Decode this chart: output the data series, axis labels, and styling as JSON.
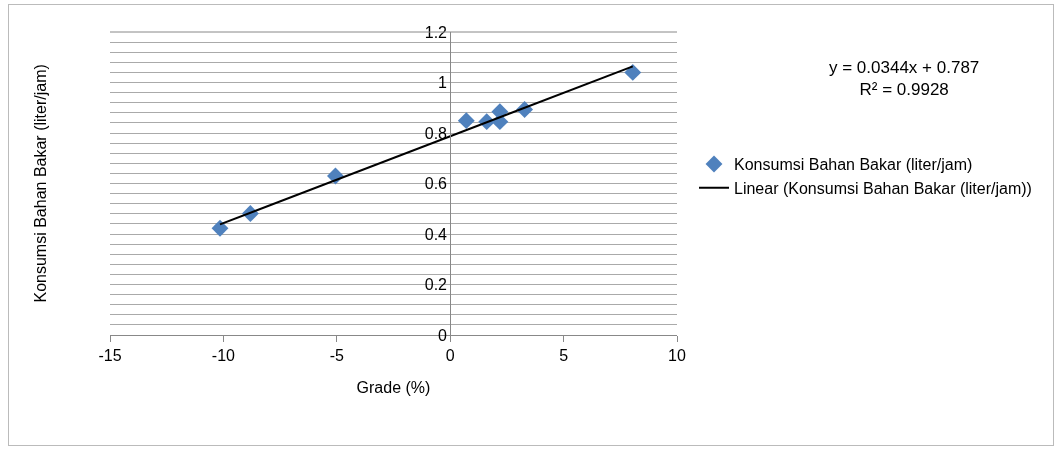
{
  "chart_data": {
    "type": "scatter",
    "xlabel": "Grade (%)",
    "ylabel": "Konsumsi Bahan Bakar (liter/jam)",
    "x": [
      -10.15,
      -8.81,
      -5.06,
      0.71,
      1.61,
      2.19,
      2.19,
      3.28,
      8.05
    ],
    "series": [
      {
        "name": "Konsumsi Bahan Bakar (liter/jam)",
        "color": "#4f81bd",
        "marker": "diamond",
        "values": [
          0.423,
          0.481,
          0.63,
          0.849,
          0.845,
          0.884,
          0.845,
          0.893,
          1.04
        ]
      },
      {
        "name": "Linear (Konsumsi Bahan Bakar (liter/jam))",
        "type": "line",
        "color": "#000000",
        "marker": "none",
        "line_style": "solid",
        "x": [
          -10.15,
          8.05
        ],
        "values": [
          0.438,
          1.064
        ]
      }
    ],
    "annotations": [
      "y = 0.0344x + 0.787\nR² = 0.9928"
    ],
    "xlim": [
      -15,
      10
    ],
    "xticks": [
      -15,
      -10,
      -5,
      0,
      5,
      10
    ],
    "ylim": [
      0,
      1.2
    ],
    "yticks": [
      0,
      {
        "value": 0.04,
        "label": null
      },
      {
        "value": 0.08,
        "label": null
      },
      {
        "value": 0.12,
        "label": null
      },
      {
        "value": 0.16,
        "label": null
      },
      0.2,
      {
        "value": 0.24,
        "label": null
      },
      {
        "value": 0.28,
        "label": null
      },
      {
        "value": 0.32,
        "label": null
      },
      {
        "value": 0.36,
        "label": null
      },
      0.4,
      {
        "value": 0.44,
        "label": null
      },
      {
        "value": 0.48,
        "label": null
      },
      {
        "value": 0.52,
        "label": null
      },
      {
        "value": 0.56,
        "label": null
      },
      0.6,
      {
        "value": 0.64,
        "label": null
      },
      {
        "value": 0.68,
        "label": null
      },
      {
        "value": 0.72,
        "label": null
      },
      {
        "value": 0.76,
        "label": null
      },
      0.8,
      {
        "value": 0.84,
        "label": null
      },
      {
        "value": 0.88,
        "label": null
      },
      {
        "value": 0.92,
        "label": null
      },
      {
        "value": 0.96,
        "label": null
      },
      1,
      {
        "value": 1.04,
        "label": null
      },
      {
        "value": 1.08,
        "label": null
      },
      {
        "value": 1.12,
        "label": null
      },
      {
        "value": 1.16,
        "label": null
      },
      1.2
    ],
    "grid": "y",
    "legend": "right"
  }
}
